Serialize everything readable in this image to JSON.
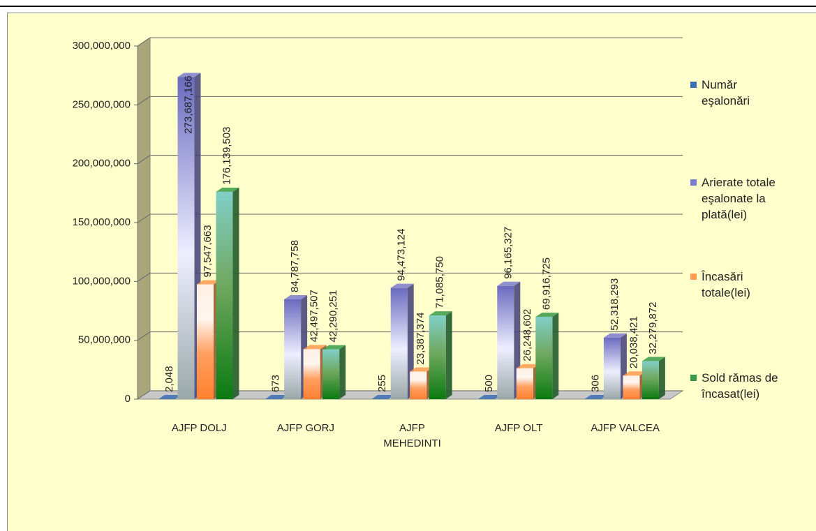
{
  "chart_data": {
    "type": "bar3d",
    "categories": [
      "AJFP DOLJ",
      "AJFP GORJ",
      "AJFP MEHEDINTI",
      "AJFP OLT",
      "AJFP VALCEA"
    ],
    "series": [
      {
        "name": "Număr eşalonări",
        "color": "#3d6fb5",
        "values": [
          2048,
          673,
          255,
          500,
          306
        ],
        "value_labels": [
          "2,048",
          "673",
          "255",
          "500",
          "306"
        ]
      },
      {
        "name": "Arierate totale eşalonate la plată(lei)",
        "color": "#7b7bd0",
        "values": [
          273687166,
          84787758,
          94473124,
          96165327,
          52318293
        ],
        "value_labels": [
          "273,687,166",
          "84,787,758",
          "94,473,124",
          "96,165,327",
          "52,318,293"
        ]
      },
      {
        "name": "Încasări totale(lei)",
        "color": "#ff9a50",
        "values": [
          97547663,
          42497507,
          23387374,
          26248602,
          20038421
        ],
        "value_labels": [
          "97,547,663",
          "42,497,507",
          "23,387,374",
          "26,248,602",
          "20,038,421"
        ]
      },
      {
        "name": "Sold rămas de încasat(lei)",
        "color": "#3a9a4a",
        "values": [
          176139503,
          42290251,
          71085750,
          69916725,
          32279872
        ],
        "value_labels": [
          "176,139,503",
          "42,290,251",
          "71,085,750",
          "69,916,725",
          "32,279,872"
        ]
      }
    ],
    "ylim": [
      0,
      300000000
    ],
    "yticks": [
      0,
      {
        "value": 50000000,
        "label": "50,000,000"
      },
      {
        "value": 100000000,
        "label": "100,000,000"
      },
      {
        "value": 150000000,
        "label": "150,000,000"
      },
      {
        "value": 200000000,
        "label": "200,000,000"
      },
      {
        "value": 250000000,
        "label": "250,000,000"
      },
      {
        "value": 300000000,
        "label": "300,000,000"
      }
    ],
    "grid": true,
    "legend": "right"
  }
}
